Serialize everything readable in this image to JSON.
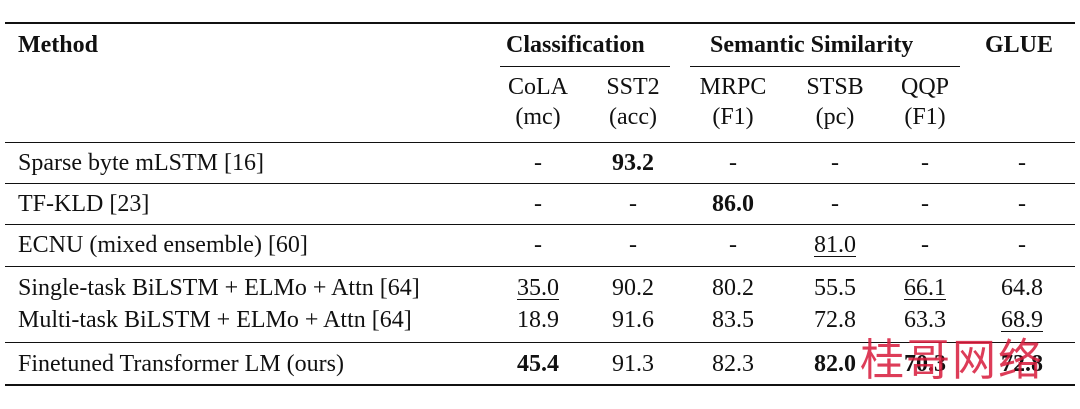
{
  "header": {
    "method": "Method",
    "group_classification": "Classification",
    "group_similarity": "Semantic Similarity",
    "group_glue": "GLUE",
    "cols": [
      {
        "name": "CoLA",
        "metric": "(mc)"
      },
      {
        "name": "SST2",
        "metric": "(acc)"
      },
      {
        "name": "MRPC",
        "metric": "(F1)"
      },
      {
        "name": "STSB",
        "metric": "(pc)"
      },
      {
        "name": "QQP",
        "metric": "(F1)"
      }
    ]
  },
  "rows": [
    {
      "method": "Sparse byte mLSTM [16]",
      "cells": [
        "-",
        "93.2",
        "-",
        "-",
        "-",
        "-"
      ]
    },
    {
      "method": "TF-KLD [23]",
      "cells": [
        "-",
        "-",
        "86.0",
        "-",
        "-",
        "-"
      ]
    },
    {
      "method": "ECNU (mixed ensemble) [60]",
      "cells": [
        "-",
        "-",
        "-",
        "81.0",
        "-",
        "-"
      ]
    },
    {
      "method": "Single-task BiLSTM + ELMo + Attn [64]",
      "cells": [
        "35.0",
        "90.2",
        "80.2",
        "55.5",
        "66.1",
        "64.8"
      ]
    },
    {
      "method": "Multi-task BiLSTM + ELMo + Attn [64]",
      "cells": [
        "18.9",
        "91.6",
        "83.5",
        "72.8",
        "63.3",
        "68.9"
      ]
    },
    {
      "method": "Finetuned Transformer LM (ours)",
      "cells": [
        "45.4",
        "91.3",
        "82.3",
        "82.0",
        "70.3",
        "72.8"
      ]
    }
  ],
  "watermark": "桂哥网络"
}
